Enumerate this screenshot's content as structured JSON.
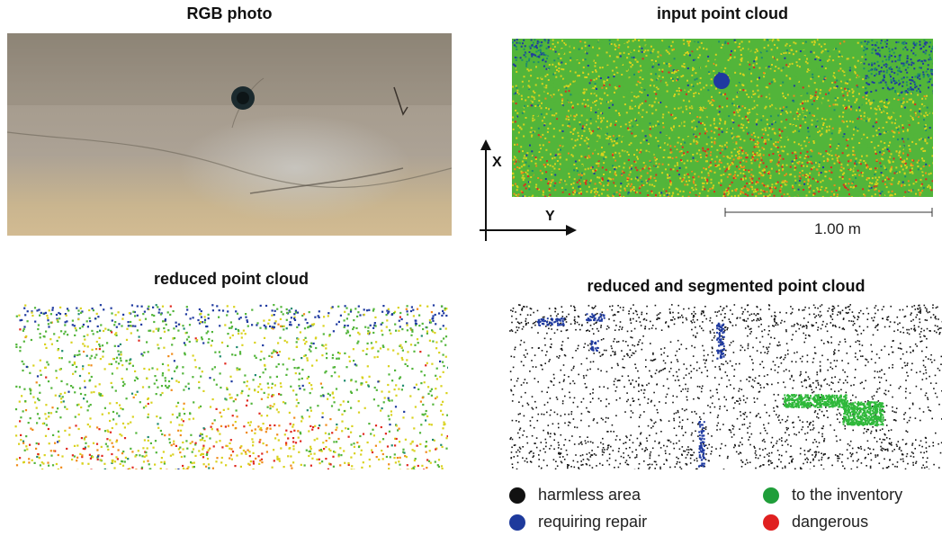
{
  "titles": {
    "rgb": "RGB photo",
    "input": "input point cloud",
    "reduced": "reduced point cloud",
    "segmented": "reduced and segmented point cloud"
  },
  "axes": {
    "x": "X",
    "y": "Y"
  },
  "scale": {
    "label": "1.00 m"
  },
  "legend": [
    {
      "label": "harmless area",
      "color": "#111111"
    },
    {
      "label": "to the inventory",
      "color": "#1f9e3a"
    },
    {
      "label": "requiring repair",
      "color": "#1e3a9c"
    },
    {
      "label": "dangerous",
      "color": "#e02020"
    }
  ],
  "colors": {
    "cloud_green": "#52b53a",
    "cloud_yellow": "#d9d21e",
    "cloud_orange": "#f08a1a",
    "cloud_red": "#e0281e",
    "cloud_blue": "#1f3aa0",
    "cloud_teal": "#1e8a6e"
  }
}
